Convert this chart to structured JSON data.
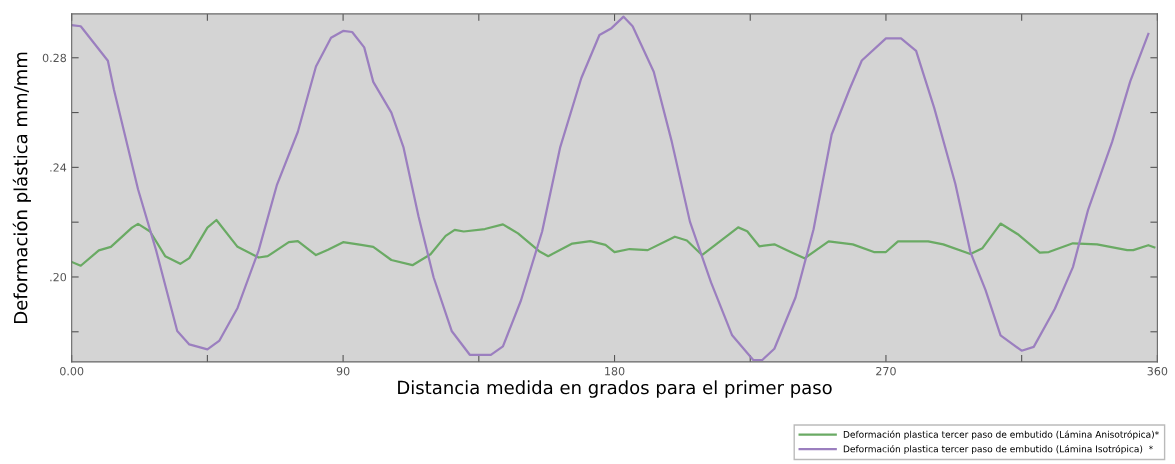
{
  "chart_data": {
    "type": "line",
    "xlabel": "Distancia medida en grados para el primer paso",
    "ylabel": "Deformación plástica mm/mm",
    "xlim": [
      0,
      360
    ],
    "xticks": [
      {
        "value": 0,
        "label": "0.00"
      },
      {
        "value": 45,
        "label": null
      },
      90,
      {
        "value": 135,
        "label": null
      },
      180,
      {
        "value": 225,
        "label": null
      },
      270,
      {
        "value": 315,
        "label": null
      },
      360
    ],
    "ylim": [
      0.169,
      0.296
    ],
    "yticks": [
      {
        "value": 0.18,
        "label": null
      },
      {
        "value": 0.2,
        "label": ".20"
      },
      {
        "value": 0.22,
        "label": null
      },
      {
        "value": 0.24,
        "label": ".24"
      },
      {
        "value": 0.26,
        "label": null
      },
      {
        "value": 0.28,
        "label": "0.28"
      }
    ],
    "grid": false,
    "legend": "bottom right",
    "marker": "none",
    "line_style": "solid",
    "series": [
      {
        "name": "Deformación plastica tercer paso de embutido (Lámina Anisotrópica)*",
        "color": "#6aaa64",
        "x": [
          0,
          3,
          9,
          13,
          20,
          22,
          26,
          31,
          36,
          39,
          45,
          48,
          55,
          62,
          65,
          72,
          75,
          81,
          85,
          90,
          96,
          100,
          106,
          113,
          119,
          124,
          127,
          130,
          137,
          143,
          148,
          155,
          158,
          166,
          172,
          177,
          180,
          185,
          191,
          200,
          204,
          209,
          221,
          224,
          228,
          233,
          237,
          243,
          251,
          259,
          266,
          270,
          274,
          284,
          289,
          298,
          302,
          308,
          314,
          321,
          324,
          332,
          340,
          350,
          352,
          357,
          359
        ],
        "values": [
          0.2055,
          0.2041,
          0.2097,
          0.211,
          0.218,
          0.2194,
          0.2166,
          0.2076,
          0.2048,
          0.2069,
          0.218,
          0.2208,
          0.211,
          0.2071,
          0.2076,
          0.2127,
          0.2131,
          0.208,
          0.2099,
          0.2127,
          0.2117,
          0.211,
          0.2062,
          0.2043,
          0.2083,
          0.215,
          0.2172,
          0.2166,
          0.2175,
          0.2192,
          0.2159,
          0.2094,
          0.2076,
          0.2122,
          0.2131,
          0.2117,
          0.2091,
          0.2102,
          0.2098,
          0.2147,
          0.2133,
          0.208,
          0.2181,
          0.2167,
          0.2112,
          0.2119,
          0.2098,
          0.2068,
          0.213,
          0.2119,
          0.2091,
          0.2091,
          0.213,
          0.213,
          0.2119,
          0.2084,
          0.2105,
          0.2195,
          0.2154,
          0.2089,
          0.2091,
          0.2123,
          0.2119,
          0.2098,
          0.2098,
          0.2116,
          0.2108
        ]
      },
      {
        "name": "Deformación plastica tercer paso de embutido (Lámina Isotrópica)  *",
        "color": "#9b7fbf",
        "x": [
          0,
          3,
          12,
          14,
          22,
          28,
          35,
          39,
          45,
          49,
          55,
          62,
          68,
          75,
          81,
          86,
          90,
          93,
          97,
          100,
          106,
          110,
          115,
          120,
          126,
          132,
          139,
          143,
          149,
          156,
          162,
          169,
          175,
          179,
          183,
          186,
          193,
          199,
          205,
          212,
          219,
          226,
          229,
          233,
          240,
          246,
          252,
          258,
          262,
          270,
          275,
          280,
          286,
          293,
          298,
          303,
          308,
          315,
          319,
          326,
          332,
          337,
          345,
          351,
          357
        ],
        "values": [
          0.2919,
          0.2915,
          0.2789,
          0.2684,
          0.232,
          0.2097,
          0.1803,
          0.1754,
          0.1736,
          0.1768,
          0.1887,
          0.2097,
          0.2334,
          0.253,
          0.2768,
          0.2873,
          0.2898,
          0.2894,
          0.2838,
          0.2712,
          0.26,
          0.2474,
          0.2222,
          0.1999,
          0.1803,
          0.1716,
          0.1716,
          0.1747,
          0.1915,
          0.2166,
          0.2474,
          0.2726,
          0.2883,
          0.2908,
          0.295,
          0.2915,
          0.2749,
          0.2493,
          0.2202,
          0.198,
          0.1787,
          0.1697,
          0.1697,
          0.1738,
          0.1925,
          0.2174,
          0.252,
          0.2687,
          0.279,
          0.2871,
          0.2871,
          0.2825,
          0.2617,
          0.234,
          0.2091,
          0.1953,
          0.1787,
          0.1731,
          0.1745,
          0.1884,
          0.2036,
          0.2244,
          0.2493,
          0.2714,
          0.2887
        ]
      }
    ]
  }
}
